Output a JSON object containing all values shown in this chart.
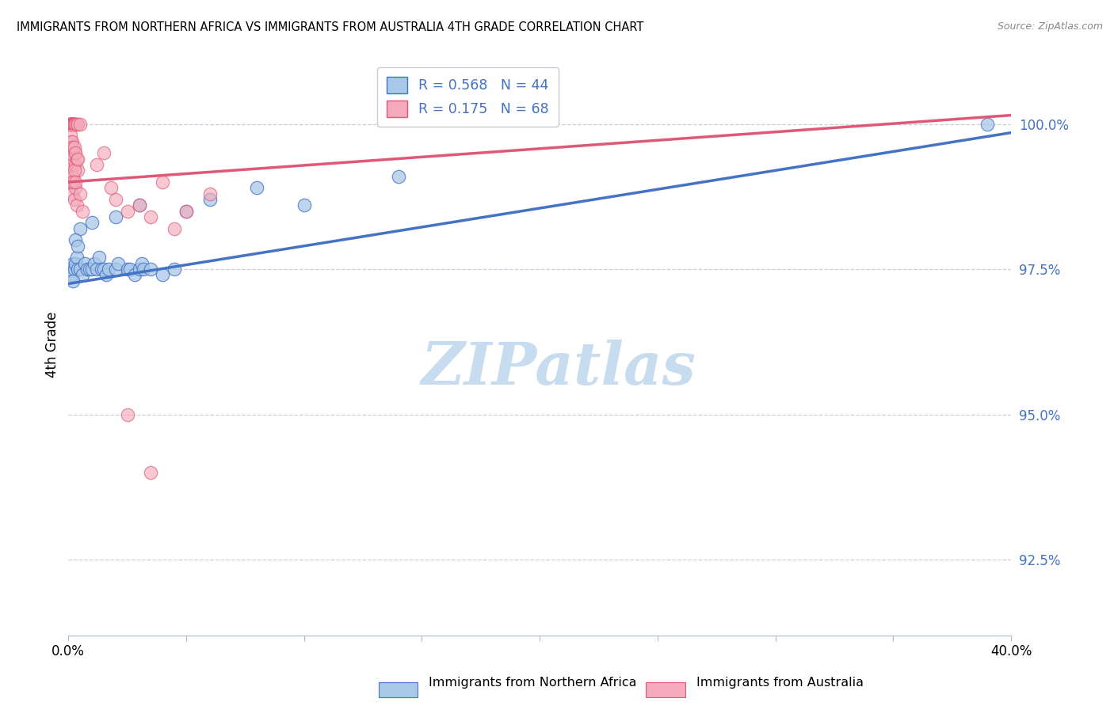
{
  "title": "IMMIGRANTS FROM NORTHERN AFRICA VS IMMIGRANTS FROM AUSTRALIA 4TH GRADE CORRELATION CHART",
  "source": "Source: ZipAtlas.com",
  "ylabel": "4th Grade",
  "y_ticks": [
    92.5,
    95.0,
    97.5,
    100.0
  ],
  "y_tick_labels": [
    "92.5%",
    "95.0%",
    "97.5%",
    "100.0%"
  ],
  "xlim": [
    0.0,
    40.0
  ],
  "ylim": [
    91.2,
    101.2
  ],
  "blue_color": "#A8C8E8",
  "pink_color": "#F4AABB",
  "trend_blue_color": "#4472C4",
  "trend_pink_color": "#E05878",
  "watermark": "ZIPatlas",
  "watermark_color": "#C8DCF0",
  "legend_blue_label": "Immigrants from Northern Africa",
  "legend_pink_label": "Immigrants from Australia",
  "blue_trend_x": [
    0.0,
    40.0
  ],
  "blue_trend_y": [
    97.25,
    99.85
  ],
  "pink_trend_x": [
    0.0,
    40.0
  ],
  "pink_trend_y": [
    99.0,
    100.15
  ],
  "blue_points": [
    [
      0.1,
      97.5
    ],
    [
      0.15,
      97.4
    ],
    [
      0.2,
      97.6
    ],
    [
      0.25,
      97.5
    ],
    [
      0.3,
      97.6
    ],
    [
      0.35,
      97.7
    ],
    [
      0.4,
      97.5
    ],
    [
      0.5,
      97.5
    ],
    [
      0.6,
      97.4
    ],
    [
      0.7,
      97.6
    ],
    [
      0.8,
      97.5
    ],
    [
      0.9,
      97.5
    ],
    [
      1.0,
      97.5
    ],
    [
      1.1,
      97.6
    ],
    [
      1.2,
      97.5
    ],
    [
      1.3,
      97.7
    ],
    [
      1.4,
      97.5
    ],
    [
      1.5,
      97.5
    ],
    [
      1.6,
      97.4
    ],
    [
      1.7,
      97.5
    ],
    [
      2.0,
      97.5
    ],
    [
      2.1,
      97.6
    ],
    [
      2.5,
      97.5
    ],
    [
      2.6,
      97.5
    ],
    [
      2.8,
      97.4
    ],
    [
      3.0,
      97.5
    ],
    [
      3.1,
      97.6
    ],
    [
      3.2,
      97.5
    ],
    [
      3.5,
      97.5
    ],
    [
      4.0,
      97.4
    ],
    [
      4.5,
      97.5
    ],
    [
      0.5,
      98.2
    ],
    [
      1.0,
      98.3
    ],
    [
      2.0,
      98.4
    ],
    [
      3.0,
      98.6
    ],
    [
      5.0,
      98.5
    ],
    [
      6.0,
      98.7
    ],
    [
      8.0,
      98.9
    ],
    [
      10.0,
      98.6
    ],
    [
      14.0,
      99.1
    ],
    [
      0.3,
      98.0
    ],
    [
      0.4,
      97.9
    ],
    [
      39.0,
      100.0
    ],
    [
      0.2,
      97.3
    ]
  ],
  "pink_points": [
    [
      0.05,
      100.0
    ],
    [
      0.06,
      100.0
    ],
    [
      0.07,
      100.0
    ],
    [
      0.08,
      100.0
    ],
    [
      0.09,
      100.0
    ],
    [
      0.1,
      100.0
    ],
    [
      0.11,
      100.0
    ],
    [
      0.12,
      100.0
    ],
    [
      0.13,
      100.0
    ],
    [
      0.14,
      100.0
    ],
    [
      0.15,
      100.0
    ],
    [
      0.16,
      100.0
    ],
    [
      0.17,
      100.0
    ],
    [
      0.18,
      100.0
    ],
    [
      0.19,
      100.0
    ],
    [
      0.2,
      100.0
    ],
    [
      0.21,
      100.0
    ],
    [
      0.22,
      100.0
    ],
    [
      0.23,
      100.0
    ],
    [
      0.24,
      100.0
    ],
    [
      0.25,
      100.0
    ],
    [
      0.26,
      100.0
    ],
    [
      0.27,
      100.0
    ],
    [
      0.28,
      100.0
    ],
    [
      0.35,
      100.0
    ],
    [
      0.4,
      100.0
    ],
    [
      0.5,
      100.0
    ],
    [
      0.1,
      99.2
    ],
    [
      0.12,
      99.0
    ],
    [
      0.15,
      98.8
    ],
    [
      0.2,
      99.1
    ],
    [
      0.25,
      98.7
    ],
    [
      0.3,
      98.9
    ],
    [
      0.35,
      98.6
    ],
    [
      0.5,
      98.8
    ],
    [
      0.6,
      98.5
    ],
    [
      0.15,
      99.4
    ],
    [
      0.2,
      99.3
    ],
    [
      0.25,
      99.5
    ],
    [
      0.08,
      99.6
    ],
    [
      0.1,
      99.5
    ],
    [
      0.12,
      99.7
    ],
    [
      0.3,
      99.3
    ],
    [
      0.4,
      99.2
    ],
    [
      0.35,
      99.4
    ],
    [
      0.2,
      99.0
    ],
    [
      0.25,
      99.2
    ],
    [
      0.3,
      99.0
    ],
    [
      1.5,
      99.5
    ],
    [
      2.0,
      98.7
    ],
    [
      3.0,
      98.6
    ],
    [
      4.0,
      99.0
    ],
    [
      5.0,
      98.5
    ],
    [
      6.0,
      98.8
    ],
    [
      2.5,
      98.5
    ],
    [
      3.5,
      98.4
    ],
    [
      4.5,
      98.2
    ],
    [
      1.2,
      99.3
    ],
    [
      1.8,
      98.9
    ],
    [
      2.5,
      95.0
    ],
    [
      3.5,
      94.0
    ],
    [
      0.1,
      99.8
    ],
    [
      0.15,
      99.7
    ],
    [
      0.2,
      99.6
    ],
    [
      0.25,
      99.6
    ],
    [
      0.3,
      99.5
    ],
    [
      0.4,
      99.4
    ]
  ]
}
